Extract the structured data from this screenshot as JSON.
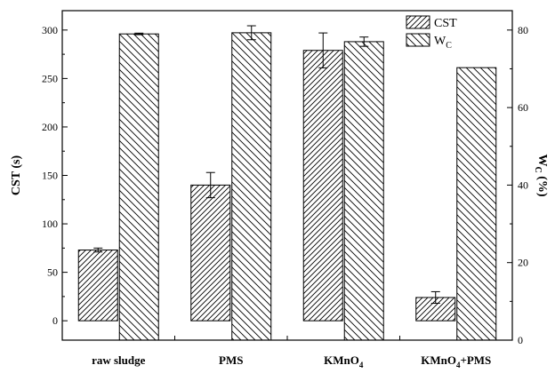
{
  "chart_data": {
    "type": "bar",
    "categories": [
      "raw sludge",
      "PMS",
      "KMnO4",
      "KMnO4+PMS"
    ],
    "series": [
      {
        "name": "CST",
        "axis": "left",
        "values": [
          73,
          140,
          279,
          24
        ],
        "errors": [
          2,
          13,
          18,
          6
        ],
        "pattern": "diagonal-hatch-forward"
      },
      {
        "name": "W_C",
        "axis": "right",
        "values": [
          79,
          79.3,
          77,
          70.3
        ],
        "errors": [
          0.2,
          1.8,
          1.2,
          0
        ],
        "pattern": "diagonal-hatch-backward"
      }
    ],
    "left_axis": {
      "label": "CST (s)",
      "range": [
        -20,
        320
      ],
      "ticks": [
        0,
        50,
        100,
        150,
        200,
        250,
        300
      ]
    },
    "right_axis": {
      "label": "W_C (%)",
      "range": [
        0,
        85
      ],
      "ticks": [
        0,
        20,
        40,
        60,
        80
      ]
    },
    "legend": {
      "position": "top-right",
      "entries": [
        "CST",
        "W_C"
      ]
    },
    "grid": false,
    "title": ""
  }
}
